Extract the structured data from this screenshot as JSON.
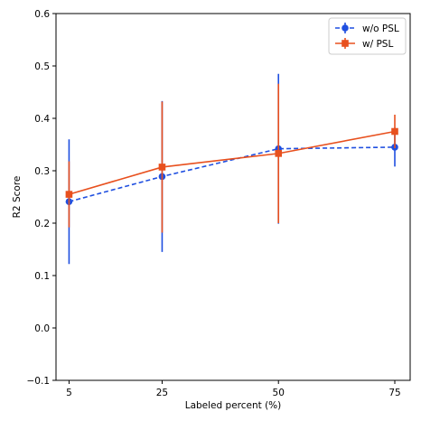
{
  "chart_data": {
    "type": "line",
    "title": "",
    "xlabel": "Labeled percent (%)",
    "ylabel": "R2 Score",
    "x": [
      5,
      25,
      50,
      75
    ],
    "xticks": [
      "5",
      "25",
      "50",
      "75"
    ],
    "yticks": [
      "−0.1",
      "0.0",
      "0.1",
      "0.2",
      "0.3",
      "0.4",
      "0.5",
      "0.6"
    ],
    "ylim": [
      -0.1,
      0.6
    ],
    "xlim": [
      2.2,
      78.3
    ],
    "grid": false,
    "legend_position": "top-right",
    "series": [
      {
        "name": "w/o PSL",
        "color": "#1f4fe0",
        "linestyle": "dashed",
        "marker": "circle",
        "values": [
          0.241,
          0.289,
          0.342,
          0.345
        ],
        "error": [
          0.119,
          0.144,
          0.143,
          0.037
        ]
      },
      {
        "name": "w/ PSL",
        "color": "#e8501e",
        "linestyle": "solid",
        "marker": "square",
        "values": [
          0.255,
          0.307,
          0.333,
          0.375
        ],
        "error": [
          0.063,
          0.125,
          0.133,
          0.032
        ]
      }
    ]
  }
}
